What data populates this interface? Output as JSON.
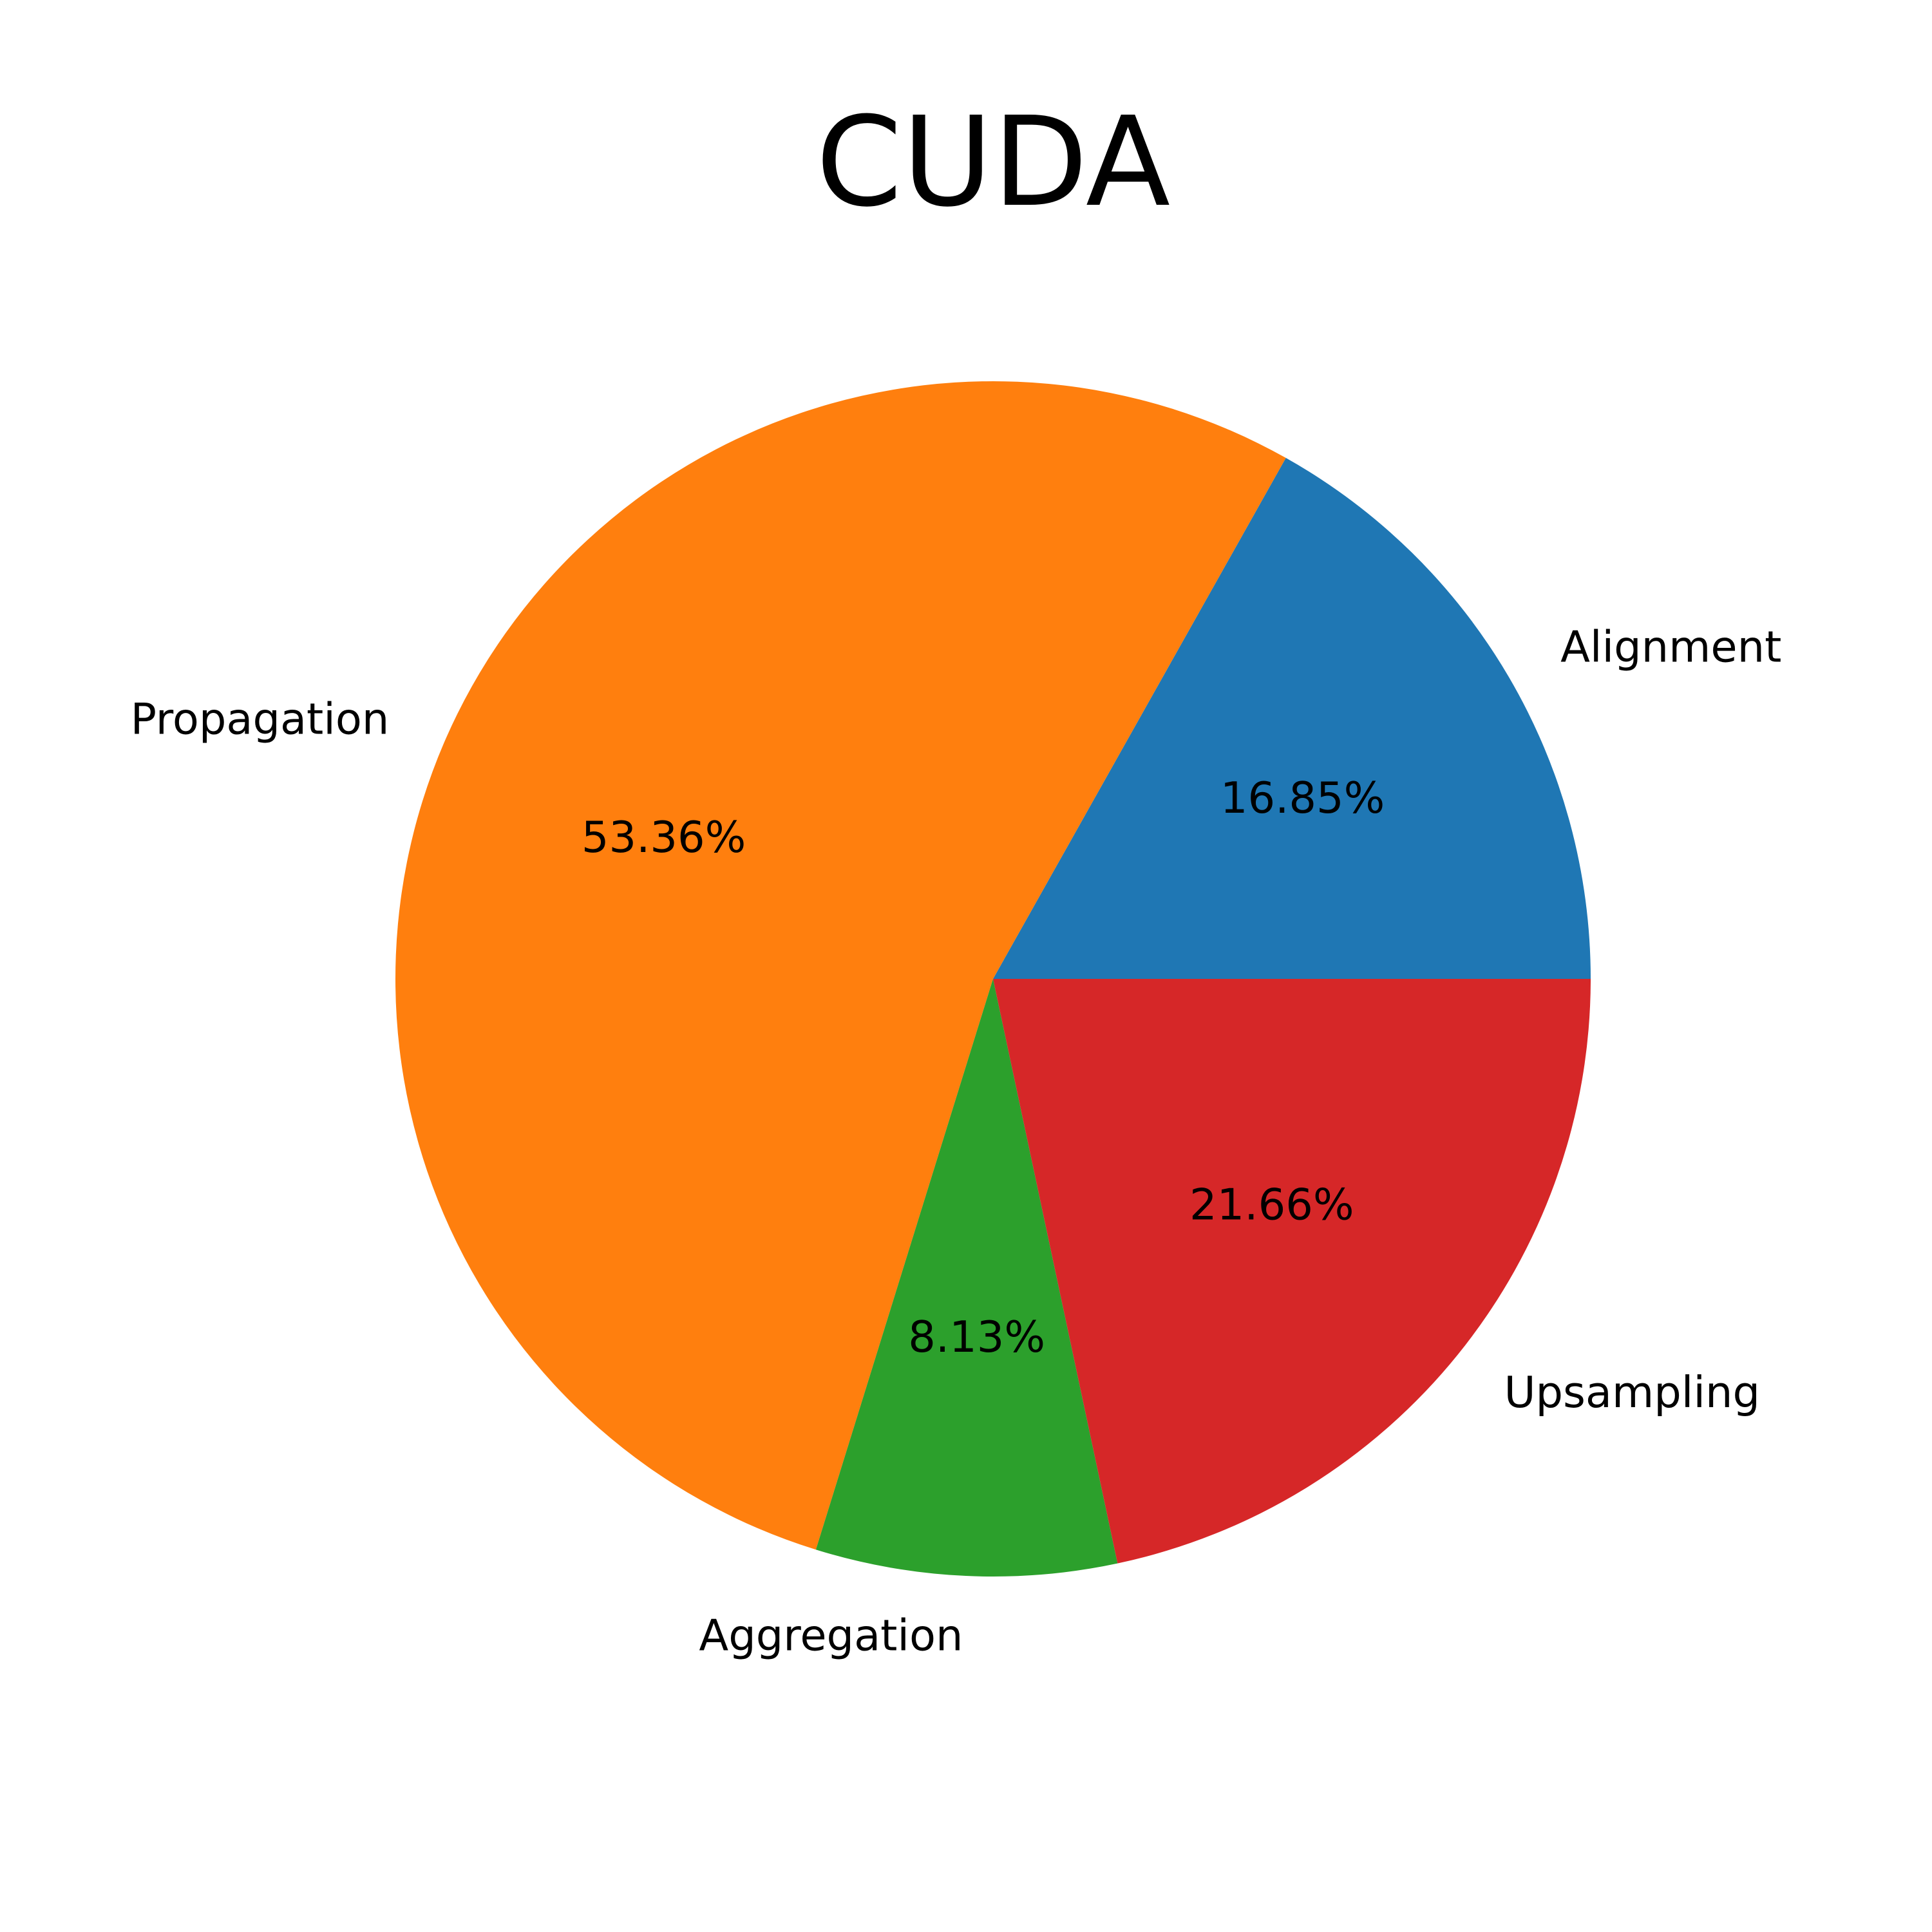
{
  "chart_data": {
    "type": "pie",
    "title": "CUDA",
    "start_angle_deg": 0,
    "direction": "counterclockwise",
    "slices": [
      {
        "label": "Alignment",
        "value": 16.85,
        "pct_label": "16.85%",
        "color": "#1f77b4"
      },
      {
        "label": "Propagation",
        "value": 53.36,
        "pct_label": "53.36%",
        "color": "#ff7f0e"
      },
      {
        "label": "Aggregation",
        "value": 8.13,
        "pct_label": "8.13%",
        "color": "#2ca02c"
      },
      {
        "label": "Upsampling",
        "value": 21.66,
        "pct_label": "21.66%",
        "color": "#d62728"
      }
    ]
  }
}
